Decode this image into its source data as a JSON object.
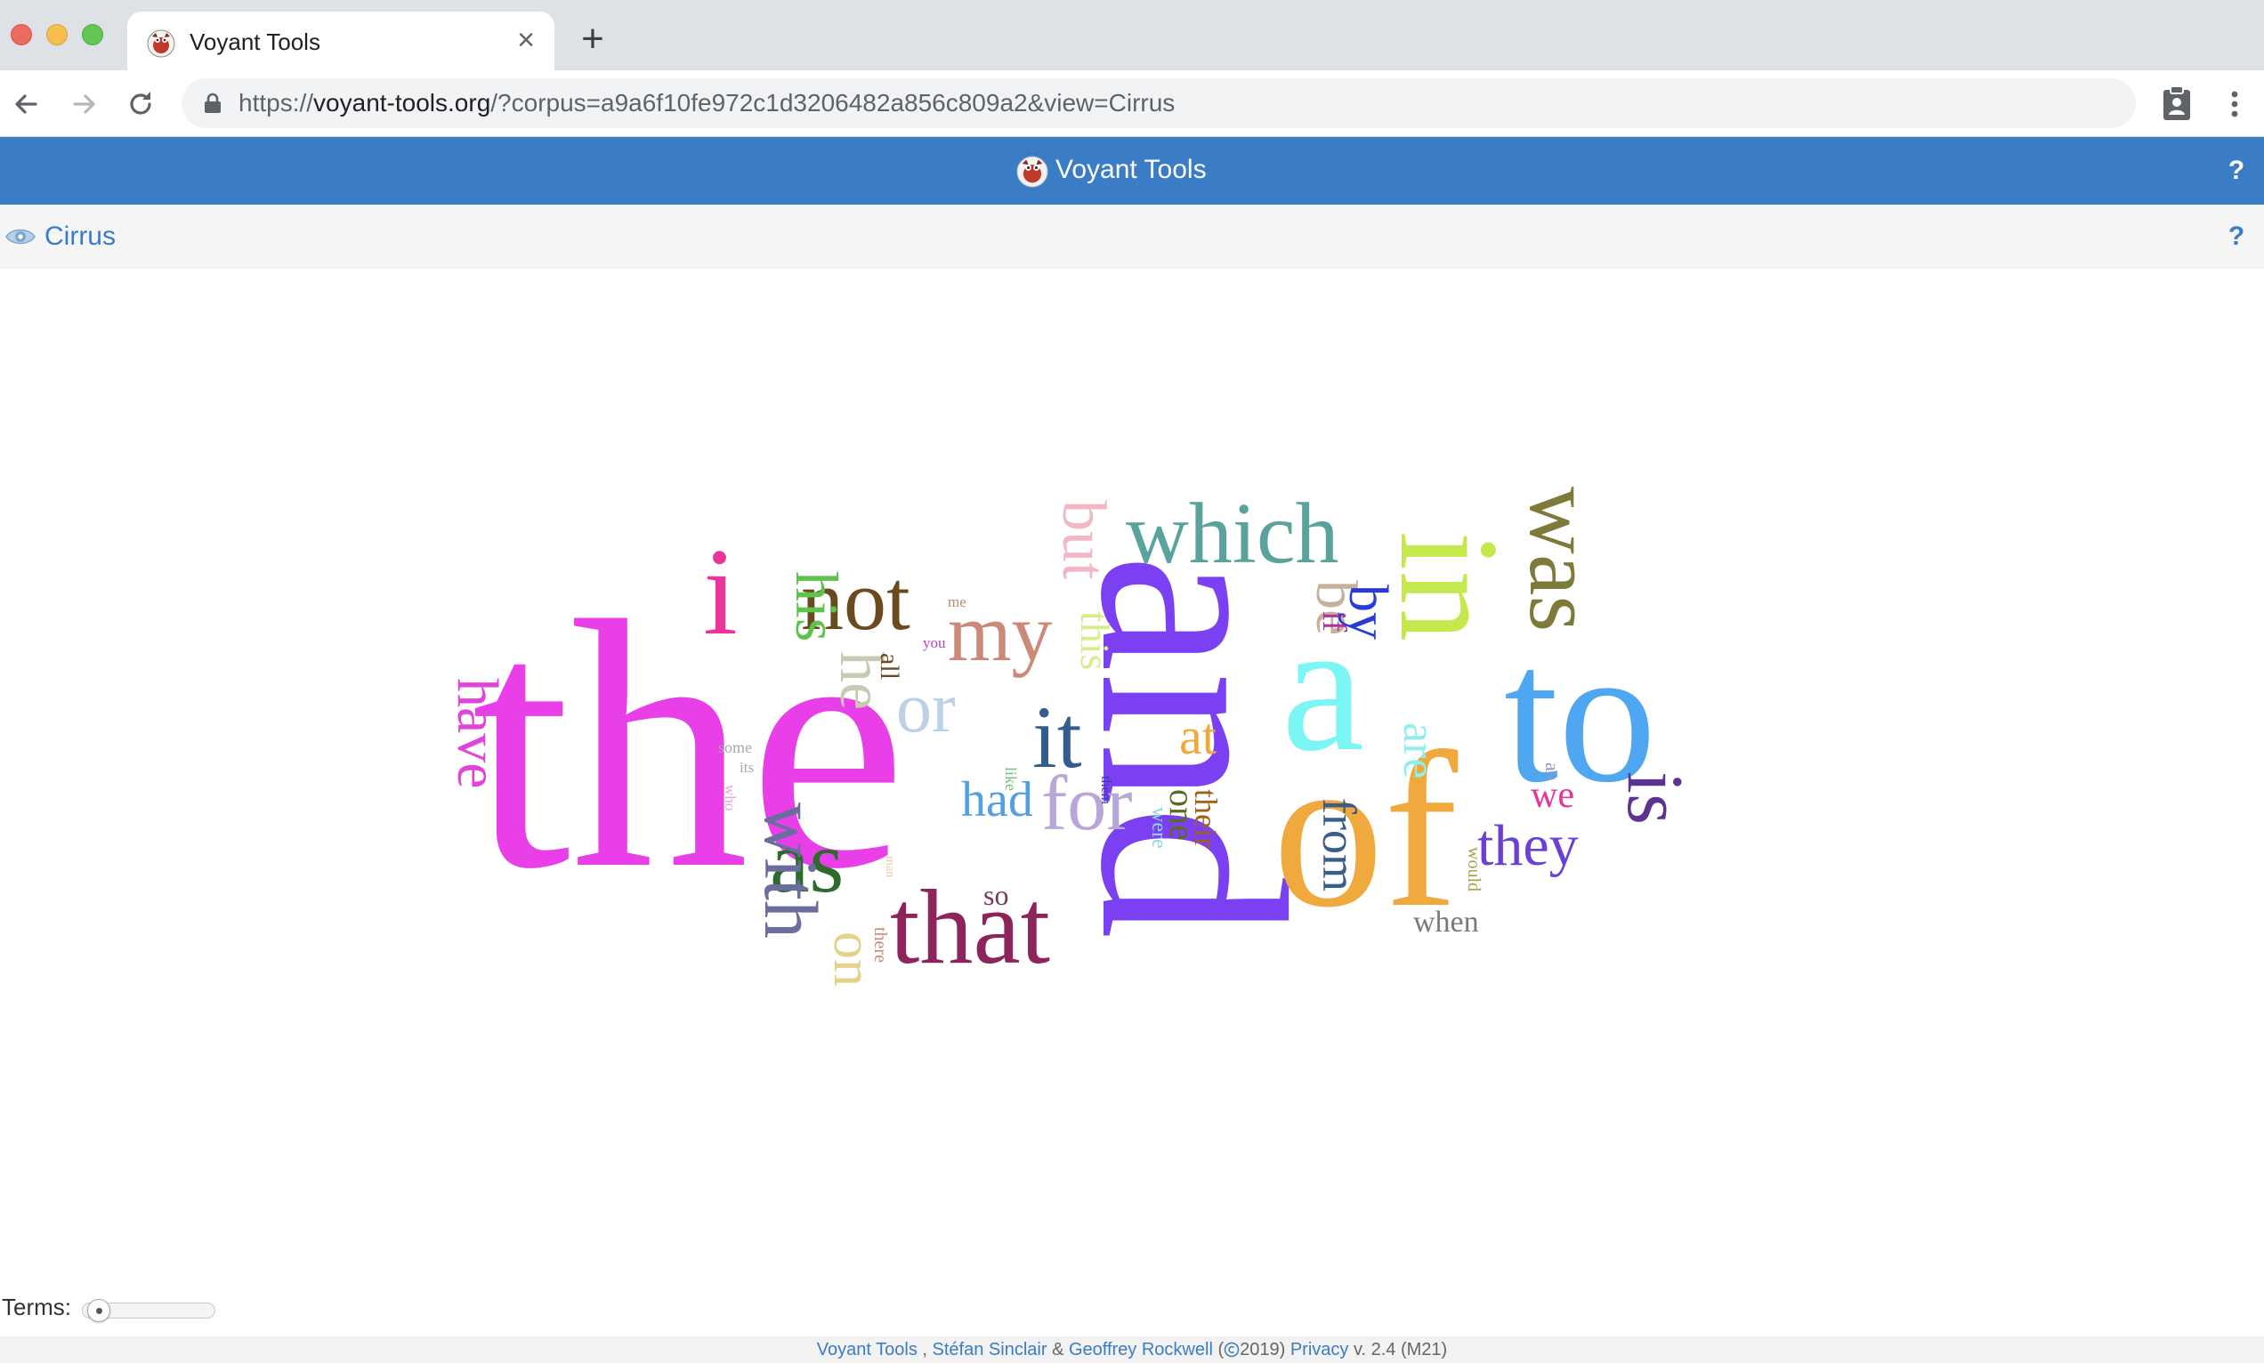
{
  "browser": {
    "tab": {
      "title": "Voyant Tools",
      "close_glyph": "×"
    },
    "new_tab_glyph": "+",
    "url": {
      "scheme": "https://",
      "host": "voyant-tools.org",
      "path": "/?corpus=a9a6f10fe972c1d3206482a856c809a2&view=Cirrus"
    },
    "icons": [
      "back-arrow-icon",
      "forward-arrow-icon",
      "reload-icon",
      "lock-icon",
      "clipboard-extension-icon",
      "kebab-menu-icon"
    ]
  },
  "app": {
    "title": "Voyant Tools",
    "help": "?",
    "colors": {
      "header": "#3a7cc5",
      "link": "#3a7cc5"
    }
  },
  "panel": {
    "title": "Cirrus",
    "help": "?"
  },
  "cloud": {
    "words": [
      {
        "text": "the",
        "color": "#e83fe8"
      },
      {
        "text": "and",
        "color": "#7a40f2"
      },
      {
        "text": "of",
        "color": "#f0a93d"
      },
      {
        "text": "to",
        "color": "#4ea7f0"
      },
      {
        "text": "a",
        "color": "#7cf5f5"
      },
      {
        "text": "in",
        "color": "#c6e84f"
      },
      {
        "text": "i",
        "color": "#e8359a"
      },
      {
        "text": "that",
        "color": "#8e245c"
      },
      {
        "text": "it",
        "color": "#345d8e"
      },
      {
        "text": "was",
        "color": "#7e7a3a"
      },
      {
        "text": "which",
        "color": "#5aa39c"
      },
      {
        "text": "not",
        "color": "#6b4a1f"
      },
      {
        "text": "my",
        "color": "#c98b77"
      },
      {
        "text": "is",
        "color": "#5b3391"
      },
      {
        "text": "as",
        "color": "#2c6b2c"
      },
      {
        "text": "with",
        "color": "#6b6e9c"
      },
      {
        "text": "for",
        "color": "#b8a6d8"
      },
      {
        "text": "but",
        "color": "#f1b8c4"
      },
      {
        "text": "he",
        "color": "#c7cbb2"
      },
      {
        "text": "his",
        "color": "#5fc24a"
      },
      {
        "text": "or",
        "color": "#bcd0e6"
      },
      {
        "text": "be",
        "color": "#c5b19e"
      },
      {
        "text": "by",
        "color": "#2a3ad6"
      },
      {
        "text": "had",
        "color": "#4fa0e6"
      },
      {
        "text": "they",
        "color": "#6c40d6"
      },
      {
        "text": "have",
        "color": "#e044d8"
      },
      {
        "text": "from",
        "color": "#3a5e8a"
      },
      {
        "text": "are",
        "color": "#8df0f0"
      },
      {
        "text": "on",
        "color": "#e6d18a"
      },
      {
        "text": "at",
        "color": "#f0a93d"
      },
      {
        "text": "this",
        "color": "#d8ec8c"
      },
      {
        "text": "we",
        "color": "#e8359a"
      },
      {
        "text": "one",
        "color": "#5b6b1f"
      },
      {
        "text": "their",
        "color": "#a0601a"
      },
      {
        "text": "if",
        "color": "#b0339a"
      },
      {
        "text": "when",
        "color": "#7a7a7a"
      },
      {
        "text": "so",
        "color": "#7a3a5c"
      },
      {
        "text": "all",
        "color": "#6b4a1f"
      },
      {
        "text": "were",
        "color": "#8adada"
      },
      {
        "text": "would",
        "color": "#a8a040"
      },
      {
        "text": "them",
        "color": "#3a3a9c"
      },
      {
        "text": "there",
        "color": "#c68b77"
      },
      {
        "text": "like",
        "color": "#6ec27c"
      },
      {
        "text": "you",
        "color": "#c33cc3"
      },
      {
        "text": "me",
        "color": "#b58b77"
      },
      {
        "text": "some",
        "color": "#a8a8a8"
      },
      {
        "text": "its",
        "color": "#a8a8a8"
      },
      {
        "text": "who",
        "color": "#e8a0d8"
      },
      {
        "text": "an",
        "color": "#8898c8"
      },
      {
        "text": "man",
        "color": "#f0c8a8"
      }
    ]
  },
  "controls": {
    "terms_label": "Terms:",
    "terms_slider_level": 0.0
  },
  "footer": {
    "link1": "Voyant Tools",
    "sep1": ",",
    "author1": "Stéfan Sinclair",
    "amp": "&",
    "author2": "Geoffrey Rockwell",
    "year": "2019)",
    "privacy": "Privacy",
    "version": "v. 2.4 (M21)"
  }
}
